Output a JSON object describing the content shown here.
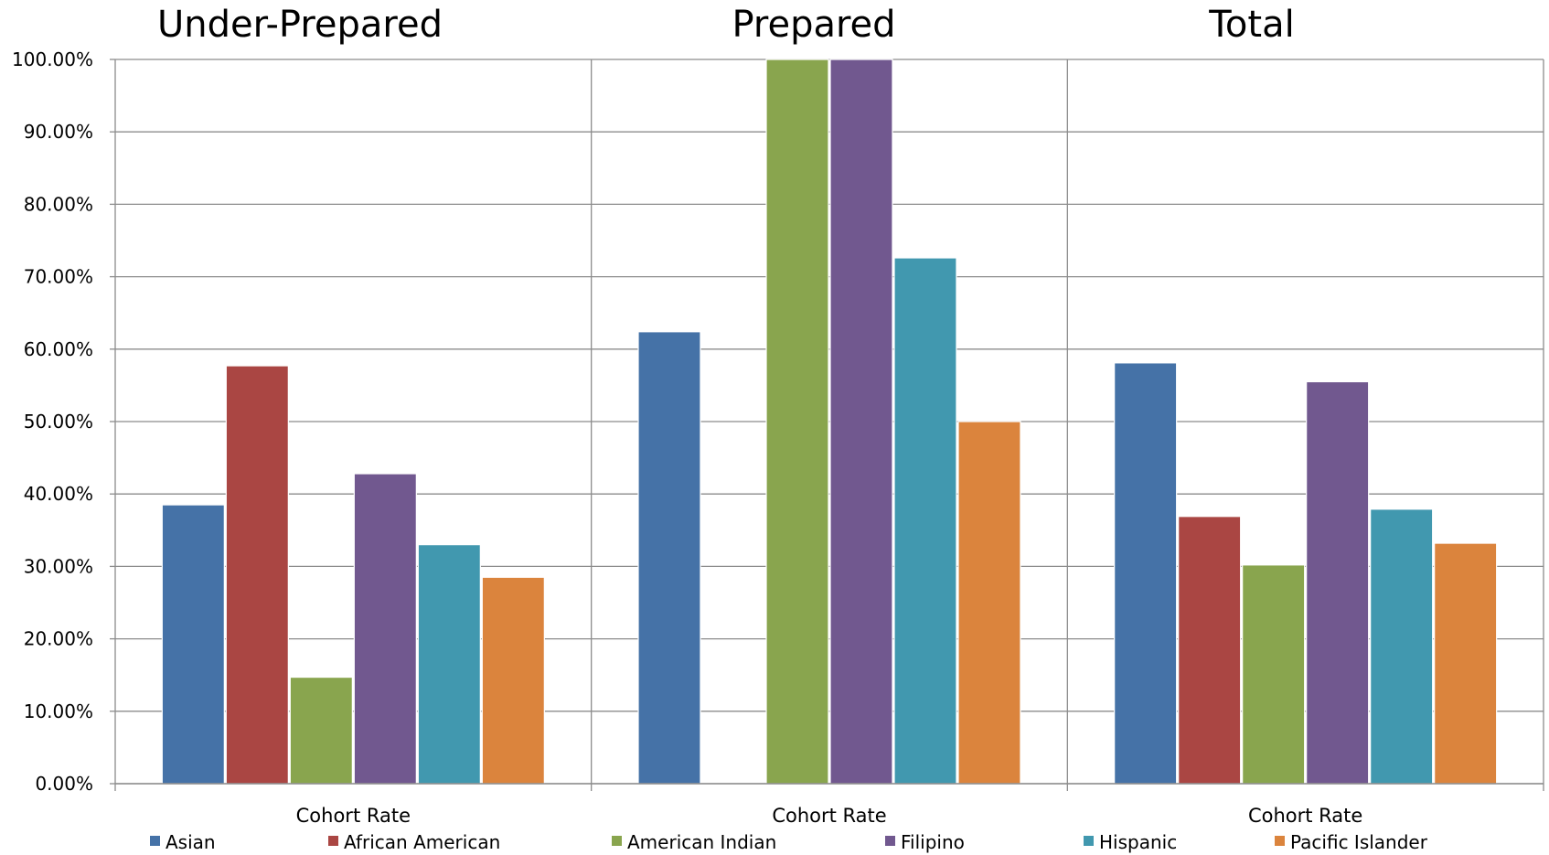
{
  "chart_data": {
    "type": "bar",
    "panels": [
      {
        "title": "Under-Prepared",
        "category": "Cohort Rate",
        "values": [
          38.5,
          57.7,
          14.7,
          42.8,
          33.0,
          28.5
        ]
      },
      {
        "title": "Prepared",
        "category": "Cohort Rate",
        "values": [
          62.4,
          null,
          100.0,
          100.0,
          72.6,
          50.0
        ]
      },
      {
        "title": "Total",
        "category": "Cohort Rate",
        "values": [
          58.1,
          36.9,
          30.2,
          55.5,
          37.9,
          33.2
        ]
      }
    ],
    "series": [
      {
        "name": "Asian",
        "color": "#4572a7"
      },
      {
        "name": "African American",
        "color": "#aa4643"
      },
      {
        "name": "American Indian",
        "color": "#89a54e"
      },
      {
        "name": "Filipino",
        "color": "#71588f"
      },
      {
        "name": "Hispanic",
        "color": "#4198af"
      },
      {
        "name": "Pacific Islander",
        "color": "#db843d"
      }
    ],
    "y_ticks": [
      "0.00%",
      "10.00%",
      "20.00%",
      "30.00%",
      "40.00%",
      "50.00%",
      "60.00%",
      "70.00%",
      "80.00%",
      "90.00%",
      "100.00%"
    ],
    "ylim": [
      0,
      100
    ],
    "grid": true,
    "legend_position": "bottom"
  }
}
